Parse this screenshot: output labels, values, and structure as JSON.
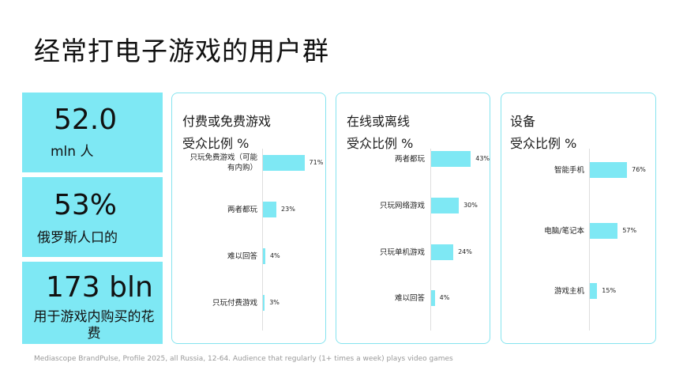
{
  "page": {
    "title": "经常打电子游戏的用户群",
    "footnote": "Mediascope BrandPulse, Profile 2025, all Russia, 12-64. Audience that regularly (1+ times a week) plays video games"
  },
  "stats": [
    {
      "big": "52.0",
      "small": "mln 人"
    },
    {
      "big": "53%",
      "small": "俄罗斯人口的"
    },
    {
      "big": "173  bln",
      "small": "用于游戏内购买的花费"
    }
  ],
  "colors": {
    "accent": "#7ee8f4",
    "border": "#86e4ef"
  },
  "chart_data": [
    {
      "type": "bar",
      "orientation": "horizontal",
      "title": [
        "付费或免费游戏",
        "受众比例 %"
      ],
      "categories": [
        "只玩免费游戏（可能有内购）",
        "两者都玩",
        "难以回答",
        "只玩付费游戏"
      ],
      "values": [
        71,
        23,
        4,
        3
      ],
      "value_labels": [
        "71%",
        "23%",
        "4%",
        "3%"
      ]
    },
    {
      "type": "bar",
      "orientation": "horizontal",
      "title": [
        "在线或离线",
        "受众比例 %"
      ],
      "categories": [
        "两者都玩",
        "只玩网络游戏",
        "只玩单机游戏",
        "难以回答"
      ],
      "values": [
        43,
        30,
        24,
        4
      ],
      "value_labels": [
        "43%",
        "30%",
        "24%",
        "4%"
      ]
    },
    {
      "type": "bar",
      "orientation": "horizontal",
      "title": [
        "设备",
        "受众比例 %"
      ],
      "categories": [
        "智能手机",
        "电脑/笔记本",
        "游戏主机"
      ],
      "values": [
        76,
        57,
        15
      ],
      "value_labels": [
        "76%",
        "57%",
        "15%"
      ]
    }
  ]
}
